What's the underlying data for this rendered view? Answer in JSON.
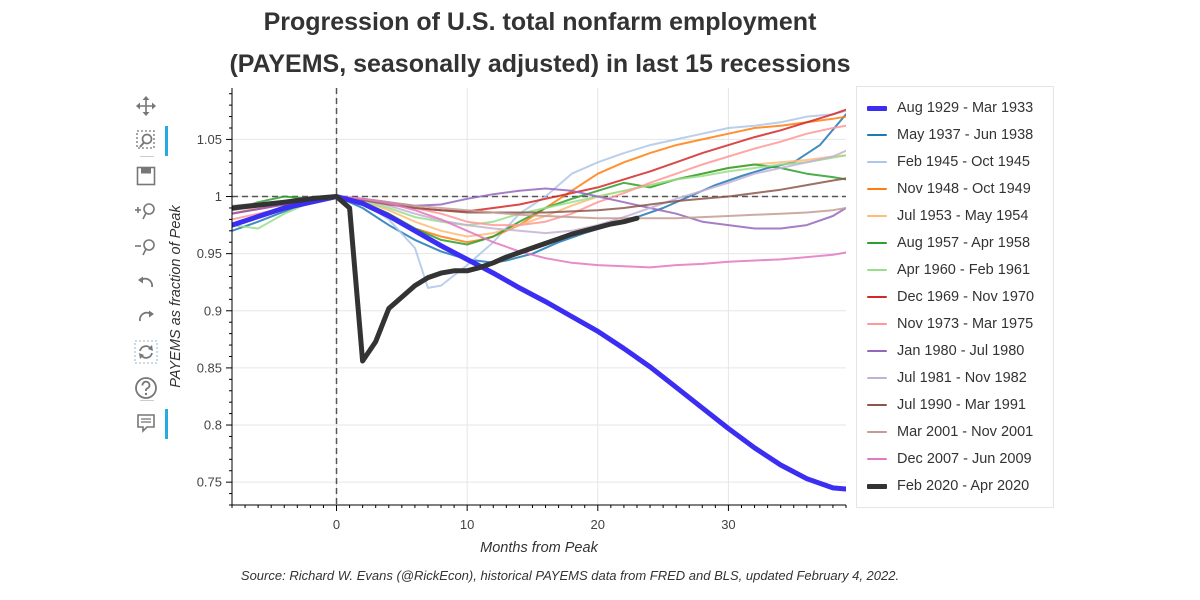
{
  "title_line1": "Progression of U.S. total nonfarm employment",
  "title_line2": "(PAYEMS, seasonally adjusted) in last 15 recessions",
  "source": "Source: Richard W. Evans (@RickEcon), historical PAYEMS data from FRED and BLS, updated February 4, 2022.",
  "toolbar": [
    {
      "name": "pan-icon",
      "active": false
    },
    {
      "name": "box-zoom-icon",
      "active": true
    },
    {
      "name": "save-icon",
      "active": false
    },
    {
      "name": "zoom-in-icon",
      "active": false
    },
    {
      "name": "zoom-out-icon",
      "active": false
    },
    {
      "name": "undo-icon",
      "active": false
    },
    {
      "name": "redo-icon",
      "active": false
    },
    {
      "name": "reset-icon",
      "active": false
    },
    {
      "name": "help-icon",
      "active": false
    },
    {
      "name": "hover-icon",
      "active": true
    }
  ],
  "chart_data": {
    "type": "line",
    "title": "Progression of U.S. total nonfarm employment (PAYEMS, seasonally adjusted) in last 15 recessions",
    "xlabel": "Months from Peak",
    "ylabel": "PAYEMS as fraction of Peak",
    "xlim": [
      -8,
      39
    ],
    "ylim": [
      0.73,
      1.095
    ],
    "xticks": [
      0,
      10,
      20,
      30
    ],
    "yticks": [
      0.75,
      0.8,
      0.85,
      0.9,
      0.95,
      1,
      1.05
    ],
    "ytick_labels": [
      "0.75",
      "0.8",
      "0.85",
      "0.9",
      "0.95",
      "1",
      "1.05"
    ],
    "reference_lines": {
      "vertical_x": 0,
      "horizontal_y": 1
    },
    "series": [
      {
        "name": "Aug 1929 - Mar 1933",
        "color": "#3b2ef2",
        "width": 5,
        "x": [
          -8,
          -4,
          0,
          2,
          4,
          6,
          8,
          10,
          12,
          14,
          16,
          18,
          20,
          22,
          24,
          26,
          28,
          30,
          32,
          34,
          36,
          38,
          39
        ],
        "y": [
          0.975,
          0.99,
          1.0,
          0.994,
          0.983,
          0.97,
          0.957,
          0.945,
          0.933,
          0.92,
          0.908,
          0.895,
          0.882,
          0.867,
          0.851,
          0.833,
          0.815,
          0.797,
          0.78,
          0.765,
          0.753,
          0.745,
          0.744
        ]
      },
      {
        "name": "May 1937 - Jun 1938",
        "color": "#1f77b4",
        "width": 2,
        "x": [
          -8,
          -6,
          -4,
          -2,
          0,
          2,
          4,
          6,
          8,
          10,
          12,
          13,
          15,
          17,
          19,
          21,
          23,
          25,
          27,
          29,
          31,
          33,
          35,
          37,
          39
        ],
        "y": [
          0.97,
          0.978,
          0.987,
          0.995,
          1.0,
          0.99,
          0.975,
          0.962,
          0.952,
          0.945,
          0.942,
          0.944,
          0.95,
          0.96,
          0.968,
          0.975,
          0.982,
          0.99,
          1.0,
          1.01,
          1.018,
          1.025,
          1.03,
          1.045,
          1.072
        ]
      },
      {
        "name": "Feb 1945 - Oct 1945",
        "color": "#aec7e8",
        "width": 2,
        "x": [
          -8,
          -4,
          0,
          2,
          4,
          6,
          7,
          8,
          10,
          12,
          14,
          16,
          18,
          20,
          22,
          24,
          26,
          28,
          30,
          32,
          34,
          36,
          38,
          39
        ],
        "y": [
          0.985,
          0.995,
          1.0,
          0.995,
          0.98,
          0.955,
          0.92,
          0.922,
          0.94,
          0.96,
          0.985,
          1.0,
          1.02,
          1.03,
          1.038,
          1.045,
          1.05,
          1.055,
          1.06,
          1.062,
          1.065,
          1.07,
          1.072,
          1.075
        ]
      },
      {
        "name": "Nov 1948 - Oct 1949",
        "color": "#ff7f0e",
        "width": 2,
        "x": [
          -8,
          -4,
          0,
          2,
          4,
          6,
          8,
          10,
          11,
          12,
          14,
          16,
          18,
          20,
          22,
          24,
          26,
          28,
          30,
          32,
          34,
          36,
          38,
          39
        ],
        "y": [
          0.99,
          0.995,
          1.0,
          0.995,
          0.985,
          0.972,
          0.965,
          0.96,
          0.962,
          0.965,
          0.975,
          0.99,
          1.005,
          1.02,
          1.03,
          1.038,
          1.045,
          1.05,
          1.055,
          1.06,
          1.062,
          1.065,
          1.068,
          1.07
        ]
      },
      {
        "name": "Jul 1953 - May 1954",
        "color": "#ffbb78",
        "width": 2,
        "x": [
          -8,
          -4,
          0,
          2,
          4,
          6,
          8,
          10,
          12,
          14,
          16,
          18,
          20,
          22,
          24,
          26,
          28,
          30,
          32,
          34,
          36,
          38,
          39
        ],
        "y": [
          0.985,
          0.995,
          1.0,
          0.996,
          0.988,
          0.978,
          0.97,
          0.965,
          0.968,
          0.975,
          0.983,
          0.992,
          1.0,
          1.005,
          1.01,
          1.015,
          1.02,
          1.025,
          1.028,
          1.03,
          1.032,
          1.035,
          1.036
        ]
      },
      {
        "name": "Aug 1957 - Apr 1958",
        "color": "#2ca02c",
        "width": 2,
        "x": [
          -8,
          -6,
          -4,
          -2,
          0,
          2,
          4,
          6,
          8,
          10,
          12,
          14,
          16,
          18,
          20,
          22,
          24,
          26,
          28,
          30,
          32,
          34,
          36,
          38,
          39
        ],
        "y": [
          0.988,
          0.995,
          1.0,
          0.998,
          1.0,
          0.995,
          0.985,
          0.972,
          0.962,
          0.958,
          0.965,
          0.978,
          0.99,
          0.998,
          1.005,
          1.012,
          1.008,
          1.015,
          1.02,
          1.025,
          1.028,
          1.025,
          1.02,
          1.017,
          1.015
        ]
      },
      {
        "name": "Apr 1960 - Feb 1961",
        "color": "#98df8a",
        "width": 2,
        "x": [
          -8,
          -6,
          -4,
          -2,
          0,
          2,
          4,
          6,
          8,
          10,
          12,
          14,
          16,
          18,
          20,
          22,
          24,
          26,
          28,
          30,
          32,
          34,
          36,
          38,
          39
        ],
        "y": [
          0.975,
          0.972,
          0.985,
          0.995,
          1.0,
          0.996,
          0.99,
          0.982,
          0.978,
          0.975,
          0.978,
          0.985,
          0.99,
          0.995,
          1.0,
          1.005,
          1.01,
          1.015,
          1.018,
          1.022,
          1.025,
          1.028,
          1.03,
          1.034,
          1.036
        ]
      },
      {
        "name": "Dec 1969 - Nov 1970",
        "color": "#d62728",
        "width": 2,
        "x": [
          -8,
          -4,
          0,
          2,
          4,
          6,
          8,
          10,
          12,
          14,
          16,
          18,
          20,
          22,
          24,
          26,
          28,
          30,
          32,
          34,
          36,
          38,
          39
        ],
        "y": [
          0.985,
          0.993,
          1.0,
          0.998,
          0.994,
          0.99,
          0.988,
          0.987,
          0.99,
          0.993,
          0.998,
          1.003,
          1.008,
          1.015,
          1.022,
          1.03,
          1.038,
          1.045,
          1.052,
          1.058,
          1.065,
          1.072,
          1.076
        ]
      },
      {
        "name": "Nov 1973 - Mar 1975",
        "color": "#ff9896",
        "width": 2,
        "x": [
          -8,
          -4,
          0,
          2,
          4,
          6,
          8,
          10,
          12,
          14,
          16,
          18,
          20,
          22,
          24,
          26,
          28,
          30,
          32,
          34,
          36,
          38,
          39
        ],
        "y": [
          0.98,
          0.99,
          1.0,
          0.998,
          0.995,
          0.99,
          0.985,
          0.978,
          0.975,
          0.975,
          0.978,
          0.985,
          0.995,
          1.003,
          1.012,
          1.02,
          1.028,
          1.035,
          1.042,
          1.048,
          1.055,
          1.06,
          1.062
        ]
      },
      {
        "name": "Jan 1980 - Jul 1980",
        "color": "#9467bd",
        "width": 2,
        "x": [
          -8,
          -4,
          0,
          2,
          4,
          6,
          8,
          10,
          12,
          14,
          16,
          18,
          20,
          22,
          24,
          26,
          28,
          30,
          32,
          34,
          36,
          38,
          39
        ],
        "y": [
          0.985,
          0.993,
          1.0,
          0.998,
          0.995,
          0.992,
          0.993,
          0.998,
          1.002,
          1.005,
          1.007,
          1.005,
          1.0,
          0.995,
          0.99,
          0.985,
          0.978,
          0.975,
          0.972,
          0.972,
          0.975,
          0.983,
          0.99
        ]
      },
      {
        "name": "Jul 1981 - Nov 1982",
        "color": "#c5b0d5",
        "width": 2,
        "x": [
          -8,
          -4,
          0,
          2,
          4,
          6,
          8,
          10,
          12,
          14,
          16,
          18,
          20,
          22,
          24,
          26,
          28,
          30,
          32,
          34,
          36,
          38,
          39
        ],
        "y": [
          0.992,
          0.996,
          1.0,
          0.997,
          0.992,
          0.985,
          0.979,
          0.975,
          0.972,
          0.97,
          0.968,
          0.97,
          0.975,
          0.982,
          0.99,
          0.998,
          1.005,
          1.012,
          1.02,
          1.025,
          1.03,
          1.035,
          1.04
        ]
      },
      {
        "name": "Jul 1990 - Mar 1991",
        "color": "#8c564b",
        "width": 2,
        "x": [
          -8,
          -4,
          0,
          2,
          4,
          6,
          8,
          10,
          12,
          14,
          16,
          18,
          20,
          22,
          24,
          26,
          28,
          30,
          32,
          34,
          36,
          38,
          39
        ],
        "y": [
          0.99,
          0.996,
          1.0,
          0.997,
          0.993,
          0.99,
          0.988,
          0.986,
          0.986,
          0.986,
          0.986,
          0.987,
          0.988,
          0.99,
          0.993,
          0.996,
          0.998,
          1.0,
          1.003,
          1.006,
          1.01,
          1.014,
          1.016
        ]
      },
      {
        "name": "Mar 2001 - Nov 2001",
        "color": "#c49c94",
        "width": 2,
        "x": [
          -8,
          -4,
          0,
          2,
          4,
          6,
          8,
          10,
          12,
          14,
          16,
          18,
          20,
          22,
          24,
          26,
          28,
          30,
          32,
          34,
          36,
          38,
          39
        ],
        "y": [
          0.988,
          0.995,
          1.0,
          0.998,
          0.995,
          0.992,
          0.99,
          0.988,
          0.986,
          0.984,
          0.983,
          0.982,
          0.981,
          0.981,
          0.981,
          0.981,
          0.982,
          0.983,
          0.984,
          0.985,
          0.986,
          0.988,
          0.99
        ]
      },
      {
        "name": "Dec 2007 - Jun 2009",
        "color": "#e377c2",
        "width": 2,
        "x": [
          -8,
          -4,
          0,
          2,
          4,
          6,
          8,
          10,
          12,
          14,
          16,
          18,
          20,
          22,
          24,
          26,
          28,
          30,
          32,
          34,
          36,
          38,
          39
        ],
        "y": [
          0.99,
          0.995,
          1.0,
          0.998,
          0.994,
          0.988,
          0.98,
          0.97,
          0.96,
          0.952,
          0.946,
          0.942,
          0.94,
          0.939,
          0.938,
          0.94,
          0.941,
          0.943,
          0.944,
          0.945,
          0.947,
          0.949,
          0.951
        ]
      },
      {
        "name": "Feb 2020 - Apr 2020",
        "color": "#333333",
        "width": 5,
        "x": [
          -8,
          -4,
          -2,
          0,
          1,
          2,
          3,
          4,
          5,
          6,
          7,
          8,
          9,
          10,
          11,
          12,
          13,
          14,
          15,
          16,
          17,
          18,
          19,
          20,
          21,
          22,
          23
        ],
        "y": [
          0.99,
          0.995,
          0.998,
          1.0,
          0.99,
          0.856,
          0.873,
          0.902,
          0.912,
          0.922,
          0.929,
          0.933,
          0.935,
          0.935,
          0.938,
          0.942,
          0.947,
          0.951,
          0.955,
          0.959,
          0.963,
          0.967,
          0.97,
          0.973,
          0.976,
          0.978,
          0.981
        ]
      }
    ]
  }
}
